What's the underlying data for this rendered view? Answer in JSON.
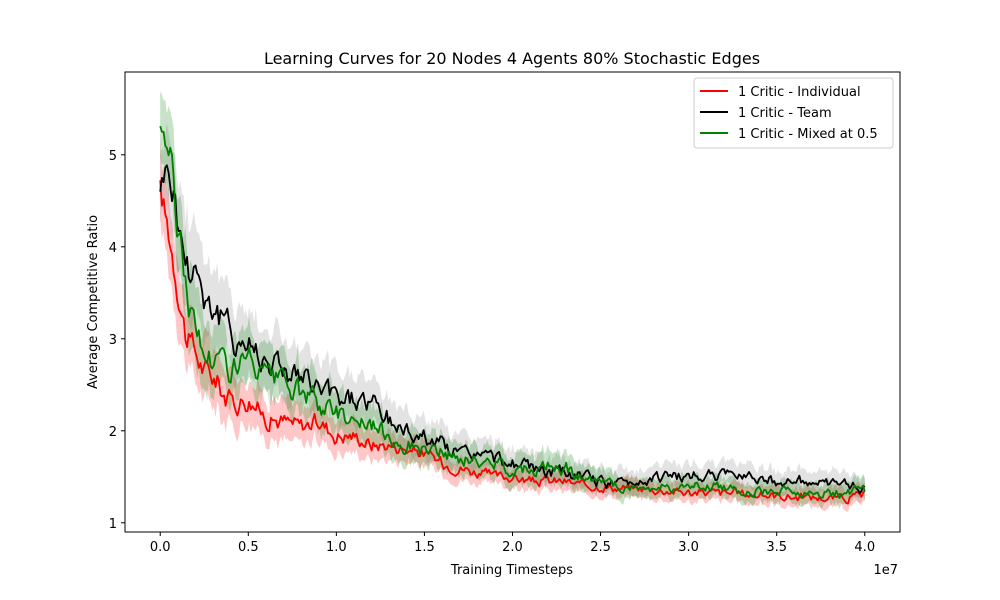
{
  "chart_data": {
    "type": "line",
    "title": "Learning Curves for 20 Nodes 4 Agents 80% Stochastic Edges",
    "xlabel": "Training Timesteps",
    "ylabel": "Average Competitive Ratio",
    "x_offset_label": "1e7",
    "xlim": [
      -0.2,
      4.2
    ],
    "ylim": [
      0.9,
      5.9
    ],
    "x_scale_note": "x values in units of 1e7 timesteps",
    "x_ticks": [
      0.0,
      0.5,
      1.0,
      1.5,
      2.0,
      2.5,
      3.0,
      3.5,
      4.0
    ],
    "x_tick_labels": [
      "0.0",
      "0.5",
      "1.0",
      "1.5",
      "2.0",
      "2.5",
      "3.0",
      "3.5",
      "4.0"
    ],
    "y_ticks": [
      1,
      2,
      3,
      4,
      5
    ],
    "y_tick_labels": [
      "1",
      "2",
      "3",
      "4",
      "5"
    ],
    "grid": false,
    "legend_position": "top-right",
    "x": [
      0.0,
      0.05,
      0.1,
      0.15,
      0.2,
      0.25,
      0.3,
      0.4,
      0.5,
      0.6,
      0.7,
      0.8,
      0.9,
      1.0,
      1.1,
      1.2,
      1.3,
      1.4,
      1.5,
      1.6,
      1.7,
      1.8,
      1.9,
      2.0,
      2.1,
      2.2,
      2.3,
      2.4,
      2.5,
      2.6,
      2.7,
      2.8,
      2.9,
      3.0,
      3.1,
      3.2,
      3.3,
      3.4,
      3.5,
      3.6,
      3.7,
      3.8,
      3.9,
      4.0
    ],
    "series": [
      {
        "name": "1 Critic - Individual",
        "color": "#ff0000",
        "band_color": "#ff0000",
        "values": [
          4.6,
          4.15,
          3.6,
          3.0,
          2.85,
          2.65,
          2.6,
          2.3,
          2.35,
          2.15,
          2.1,
          2.05,
          2.1,
          1.95,
          1.95,
          1.85,
          1.85,
          1.8,
          1.75,
          1.65,
          1.6,
          1.55,
          1.5,
          1.5,
          1.45,
          1.45,
          1.45,
          1.4,
          1.4,
          1.38,
          1.38,
          1.36,
          1.35,
          1.33,
          1.33,
          1.32,
          1.32,
          1.3,
          1.3,
          1.28,
          1.28,
          1.27,
          1.27,
          1.3
        ],
        "spread": [
          0.35,
          0.35,
          0.35,
          0.3,
          0.3,
          0.28,
          0.28,
          0.25,
          0.22,
          0.2,
          0.2,
          0.18,
          0.18,
          0.17,
          0.16,
          0.15,
          0.14,
          0.13,
          0.12,
          0.12,
          0.12,
          0.11,
          0.1,
          0.1,
          0.1,
          0.1,
          0.1,
          0.09,
          0.09,
          0.09,
          0.09,
          0.09,
          0.09,
          0.09,
          0.09,
          0.09,
          0.09,
          0.09,
          0.09,
          0.09,
          0.09,
          0.09,
          0.09,
          0.09
        ]
      },
      {
        "name": "1 Critic - Team",
        "color": "#000000",
        "band_color": "#808080",
        "values": [
          4.7,
          4.9,
          4.3,
          3.8,
          3.85,
          3.5,
          3.35,
          3.05,
          2.95,
          2.8,
          2.7,
          2.55,
          2.45,
          2.35,
          2.35,
          2.3,
          2.1,
          2.0,
          1.95,
          1.85,
          1.75,
          1.75,
          1.7,
          1.65,
          1.6,
          1.55,
          1.55,
          1.5,
          1.45,
          1.42,
          1.45,
          1.5,
          1.5,
          1.5,
          1.52,
          1.5,
          1.55,
          1.5,
          1.45,
          1.45,
          1.45,
          1.4,
          1.42,
          1.38
        ],
        "spread": [
          0.3,
          0.4,
          0.45,
          0.45,
          0.45,
          0.4,
          0.38,
          0.35,
          0.32,
          0.3,
          0.3,
          0.28,
          0.26,
          0.25,
          0.24,
          0.23,
          0.22,
          0.2,
          0.18,
          0.17,
          0.16,
          0.15,
          0.14,
          0.14,
          0.13,
          0.13,
          0.12,
          0.12,
          0.12,
          0.12,
          0.12,
          0.12,
          0.12,
          0.12,
          0.12,
          0.12,
          0.12,
          0.11,
          0.11,
          0.11,
          0.11,
          0.11,
          0.11,
          0.11
        ]
      },
      {
        "name": "1 Critic - Mixed at 0.5",
        "color": "#008000",
        "band_color": "#008000",
        "values": [
          5.35,
          5.1,
          4.2,
          3.6,
          3.05,
          2.85,
          2.8,
          2.7,
          2.75,
          2.55,
          2.5,
          2.4,
          2.3,
          2.2,
          2.15,
          2.05,
          1.95,
          1.85,
          1.8,
          1.75,
          1.7,
          1.65,
          1.65,
          1.6,
          1.6,
          1.6,
          1.6,
          1.5,
          1.42,
          1.4,
          1.38,
          1.38,
          1.38,
          1.38,
          1.4,
          1.38,
          1.35,
          1.35,
          1.35,
          1.33,
          1.33,
          1.32,
          1.33,
          1.35
        ],
        "spread": [
          0.3,
          0.4,
          0.4,
          0.4,
          0.4,
          0.35,
          0.32,
          0.3,
          0.28,
          0.26,
          0.25,
          0.24,
          0.23,
          0.22,
          0.2,
          0.19,
          0.18,
          0.17,
          0.16,
          0.16,
          0.15,
          0.15,
          0.15,
          0.15,
          0.15,
          0.15,
          0.15,
          0.13,
          0.12,
          0.11,
          0.1,
          0.1,
          0.1,
          0.1,
          0.1,
          0.1,
          0.1,
          0.1,
          0.1,
          0.1,
          0.1,
          0.1,
          0.1,
          0.1
        ]
      }
    ]
  }
}
